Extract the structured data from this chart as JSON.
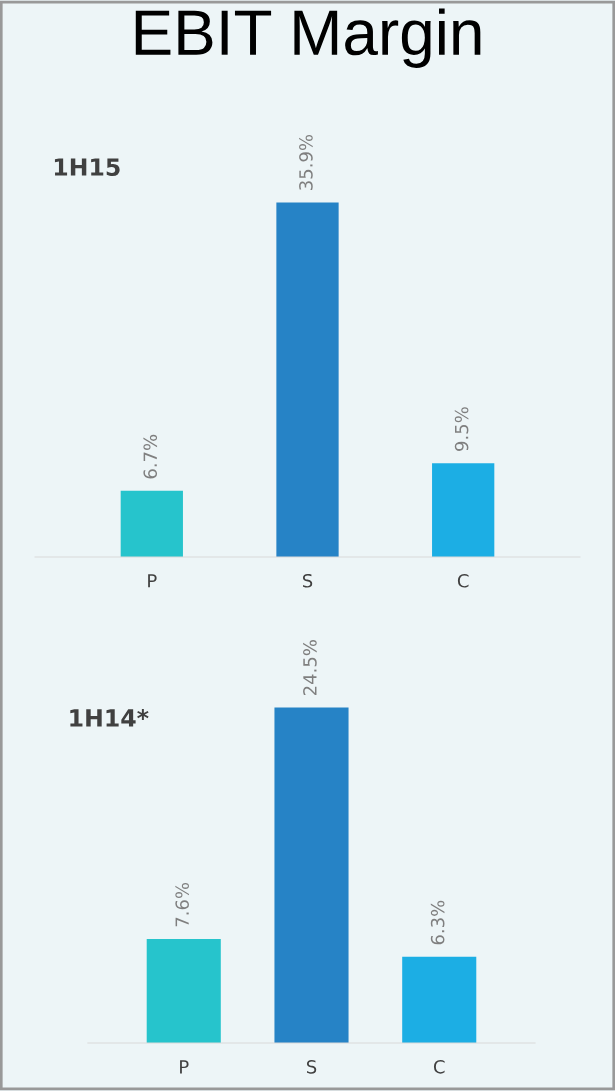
{
  "chart_data": [
    {
      "type": "bar",
      "title": "EBIT Margin",
      "subtitle": "1H15",
      "categories": [
        "P",
        "S",
        "C"
      ],
      "values": [
        6.7,
        35.9,
        9.5
      ],
      "colors": [
        "#26c4cc",
        "#2683c6",
        "#1caee4"
      ],
      "value_labels": [
        "6.7%",
        "35.9%",
        "9.5%"
      ],
      "grid": false,
      "legend": false,
      "tick_labels": "x"
    },
    {
      "type": "bar",
      "title": "1H14*",
      "categories": [
        "P",
        "S",
        "C"
      ],
      "values": [
        7.6,
        24.5,
        6.3
      ],
      "colors": [
        "#26c4cc",
        "#2683c6",
        "#1caee4"
      ],
      "value_labels": [
        "7.6%",
        "24.5%",
        "6.3%"
      ],
      "grid": false,
      "legend": false,
      "tick_labels": "x"
    }
  ]
}
